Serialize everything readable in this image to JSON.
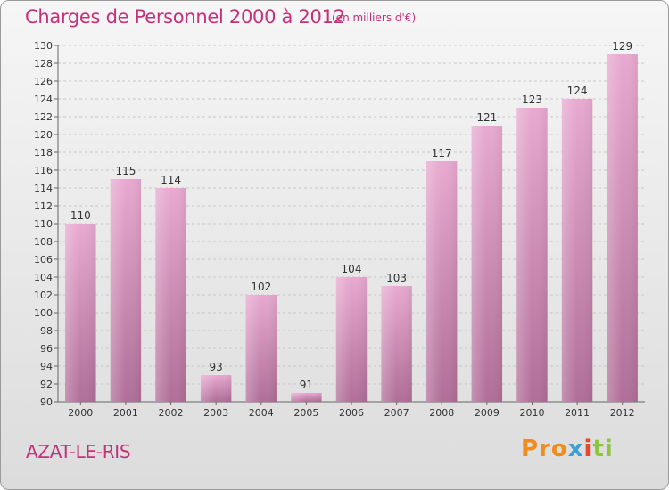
{
  "title": "Charges de Personnel 2000 à 2012",
  "subtitle": "(en milliers d'€)",
  "town": "AZAT-LE-RIS",
  "logo": {
    "p1": "Pro",
    "p2": "x",
    "p3": "i",
    "p4": "ti"
  },
  "colors": {
    "accent": "#c4317a",
    "bar_top": "#e8a9d0",
    "bar_bottom": "#b06e98"
  },
  "chart_data": {
    "type": "bar",
    "categories": [
      "2000",
      "2001",
      "2002",
      "2003",
      "2004",
      "2005",
      "2006",
      "2007",
      "2008",
      "2009",
      "2010",
      "2011",
      "2012"
    ],
    "values": [
      110,
      115,
      114,
      93,
      102,
      91,
      104,
      103,
      117,
      121,
      123,
      124,
      129
    ],
    "ylim": [
      90,
      130
    ],
    "yticks": [
      90,
      92,
      94,
      96,
      98,
      100,
      102,
      104,
      106,
      108,
      110,
      112,
      114,
      116,
      118,
      120,
      122,
      124,
      126,
      128,
      130
    ],
    "grid": true
  }
}
